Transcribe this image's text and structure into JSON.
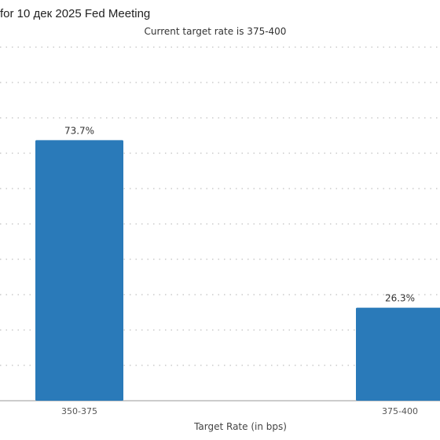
{
  "chart_data": {
    "type": "bar",
    "title": "for 10 дек 2025 Fed Meeting",
    "subtitle": "Current target rate is 375-400",
    "xlabel": "Target Rate (in bps)",
    "categories": [
      "350-375",
      "375-400"
    ],
    "values": [
      73.7,
      26.3
    ],
    "data_labels": [
      "73.7%",
      "26.3%"
    ],
    "ylim": [
      0,
      100
    ],
    "grid": true,
    "bar_color": "#2a7ab9",
    "grid_color": "#cccccc"
  }
}
